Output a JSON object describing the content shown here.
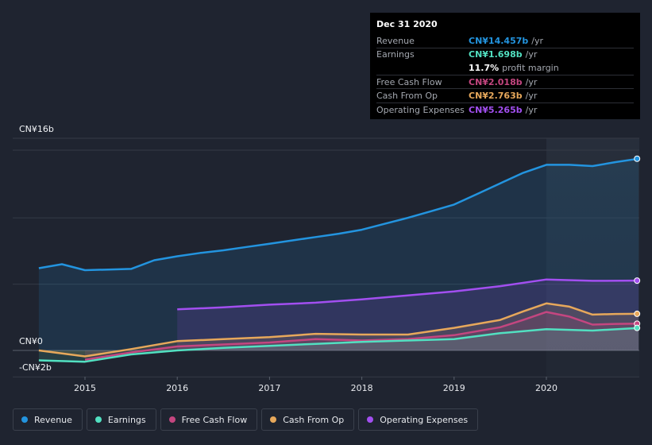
{
  "chart_data": {
    "type": "area",
    "currency_axis": {
      "top_label": "CN¥16b",
      "zero_label": "CN¥0",
      "bottom_label": "-CN¥2b",
      "ylim": [
        -2,
        16
      ]
    },
    "x_ticks": [
      "2015",
      "2016",
      "2017",
      "2018",
      "2019",
      "2020"
    ],
    "xlim": [
      2014.5,
      2021.0
    ],
    "highlight_from": 2020.0,
    "series": [
      {
        "name": "Revenue",
        "color": "#2394df",
        "points": [
          [
            2014.5,
            6.2
          ],
          [
            2014.75,
            6.5
          ],
          [
            2015.0,
            6.05
          ],
          [
            2015.25,
            6.1
          ],
          [
            2015.5,
            6.15
          ],
          [
            2015.75,
            6.8
          ],
          [
            2016.0,
            7.1
          ],
          [
            2016.25,
            7.35
          ],
          [
            2016.5,
            7.55
          ],
          [
            2016.75,
            7.8
          ],
          [
            2017.0,
            8.05
          ],
          [
            2017.25,
            8.3
          ],
          [
            2017.5,
            8.55
          ],
          [
            2017.75,
            8.8
          ],
          [
            2018.0,
            9.1
          ],
          [
            2018.25,
            9.55
          ],
          [
            2018.5,
            10.0
          ],
          [
            2018.75,
            10.5
          ],
          [
            2019.0,
            11.0
          ],
          [
            2019.25,
            11.8
          ],
          [
            2019.5,
            12.6
          ],
          [
            2019.75,
            13.4
          ],
          [
            2020.0,
            14.0
          ],
          [
            2020.25,
            14.0
          ],
          [
            2020.5,
            13.9
          ],
          [
            2020.75,
            14.2
          ],
          [
            2021.0,
            14.457
          ]
        ]
      },
      {
        "name": "Operating Expenses",
        "color": "#a24ff0",
        "points": [
          [
            2016.0,
            3.1
          ],
          [
            2016.5,
            3.25
          ],
          [
            2017.0,
            3.45
          ],
          [
            2017.5,
            3.6
          ],
          [
            2018.0,
            3.85
          ],
          [
            2018.5,
            4.15
          ],
          [
            2019.0,
            4.45
          ],
          [
            2019.5,
            4.85
          ],
          [
            2020.0,
            5.35
          ],
          [
            2020.5,
            5.25
          ],
          [
            2021.0,
            5.265
          ]
        ]
      },
      {
        "name": "Cash From Op",
        "color": "#e7a85b",
        "points": [
          [
            2014.5,
            0.0
          ],
          [
            2015.0,
            -0.45
          ],
          [
            2015.5,
            0.1
          ],
          [
            2016.0,
            0.7
          ],
          [
            2016.5,
            0.85
          ],
          [
            2017.0,
            1.0
          ],
          [
            2017.5,
            1.25
          ],
          [
            2018.0,
            1.2
          ],
          [
            2018.5,
            1.2
          ],
          [
            2019.0,
            1.7
          ],
          [
            2019.5,
            2.3
          ],
          [
            2019.75,
            2.95
          ],
          [
            2020.0,
            3.55
          ],
          [
            2020.25,
            3.3
          ],
          [
            2020.5,
            2.7
          ],
          [
            2020.75,
            2.75
          ],
          [
            2021.0,
            2.763
          ]
        ]
      },
      {
        "name": "Free Cash Flow",
        "color": "#c44680",
        "points": [
          [
            2015.0,
            -0.7
          ],
          [
            2015.5,
            -0.15
          ],
          [
            2016.0,
            0.3
          ],
          [
            2016.5,
            0.45
          ],
          [
            2017.0,
            0.6
          ],
          [
            2017.5,
            0.85
          ],
          [
            2018.0,
            0.75
          ],
          [
            2018.5,
            0.85
          ],
          [
            2019.0,
            1.15
          ],
          [
            2019.5,
            1.75
          ],
          [
            2019.75,
            2.3
          ],
          [
            2020.0,
            2.9
          ],
          [
            2020.25,
            2.55
          ],
          [
            2020.5,
            1.95
          ],
          [
            2020.75,
            2.0
          ],
          [
            2021.0,
            2.018
          ]
        ]
      },
      {
        "name": "Earnings",
        "color": "#52e0c1",
        "points": [
          [
            2014.5,
            -0.75
          ],
          [
            2015.0,
            -0.85
          ],
          [
            2015.5,
            -0.3
          ],
          [
            2016.0,
            0.0
          ],
          [
            2016.5,
            0.2
          ],
          [
            2017.0,
            0.35
          ],
          [
            2017.5,
            0.5
          ],
          [
            2018.0,
            0.65
          ],
          [
            2018.5,
            0.75
          ],
          [
            2019.0,
            0.85
          ],
          [
            2019.5,
            1.3
          ],
          [
            2020.0,
            1.6
          ],
          [
            2020.5,
            1.5
          ],
          [
            2021.0,
            1.698
          ]
        ]
      }
    ]
  },
  "tooltip": {
    "date": "Dec 31 2020",
    "rows": [
      {
        "label": "Revenue",
        "value": "CN¥14.457b",
        "unit": "/yr",
        "color": "#2394df"
      },
      {
        "label": "Earnings",
        "value": "CN¥1.698b",
        "unit": "/yr",
        "color": "#52e0c1"
      },
      {
        "label": "",
        "value": "11.7%",
        "unit": "profit margin",
        "color": "#ffffff"
      },
      {
        "label": "Free Cash Flow",
        "value": "CN¥2.018b",
        "unit": "/yr",
        "color": "#c44680"
      },
      {
        "label": "Cash From Op",
        "value": "CN¥2.763b",
        "unit": "/yr",
        "color": "#e7a85b"
      },
      {
        "label": "Operating Expenses",
        "value": "CN¥5.265b",
        "unit": "/yr",
        "color": "#a24ff0"
      }
    ]
  },
  "legend": [
    {
      "label": "Revenue",
      "color": "#2394df"
    },
    {
      "label": "Earnings",
      "color": "#52e0c1"
    },
    {
      "label": "Free Cash Flow",
      "color": "#c44680"
    },
    {
      "label": "Cash From Op",
      "color": "#e7a85b"
    },
    {
      "label": "Operating Expenses",
      "color": "#a24ff0"
    }
  ]
}
